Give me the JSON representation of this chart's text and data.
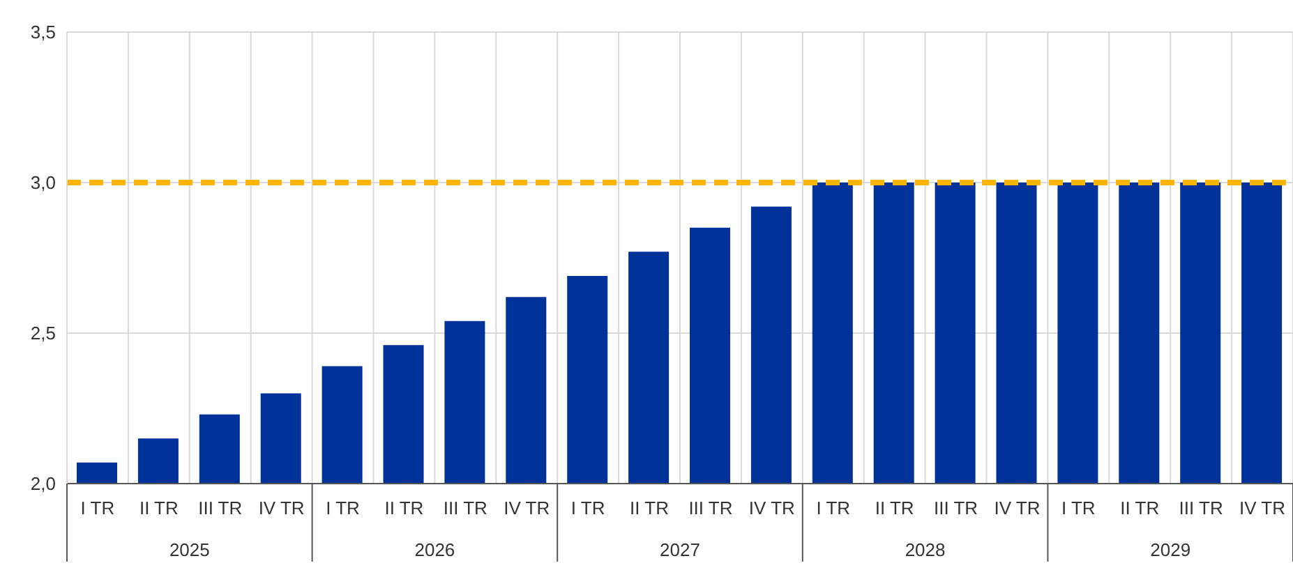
{
  "chart_data": {
    "type": "bar",
    "categories": [
      "I TR",
      "II TR",
      "III TR",
      "IV TR",
      "I TR",
      "II TR",
      "III TR",
      "IV TR",
      "I TR",
      "II TR",
      "III TR",
      "IV TR",
      "I TR",
      "II TR",
      "III TR",
      "IV TR",
      "I TR",
      "II TR",
      "III TR",
      "IV TR"
    ],
    "values": [
      2.07,
      2.15,
      2.23,
      2.3,
      2.39,
      2.46,
      2.54,
      2.62,
      2.69,
      2.77,
      2.85,
      2.92,
      3.0,
      3.0,
      3.0,
      3.0,
      3.0,
      3.0,
      3.0,
      3.0
    ],
    "color": "#003299",
    "ylim": [
      2.0,
      3.5
    ],
    "yticks": [
      {
        "value": 2.0,
        "label": "2,0"
      },
      {
        "value": 2.5,
        "label": "2,5"
      },
      {
        "value": 3.0,
        "label": "3,0"
      },
      {
        "value": 3.5,
        "label": "3,5"
      }
    ],
    "grid": true,
    "ref_lines": [
      {
        "axis": "y",
        "value": 3.0,
        "label": null,
        "color": "#ffb400",
        "line_style": "dashed"
      }
    ],
    "annotations": [
      "2025",
      "2026",
      "2027",
      "2028",
      "2029"
    ]
  }
}
